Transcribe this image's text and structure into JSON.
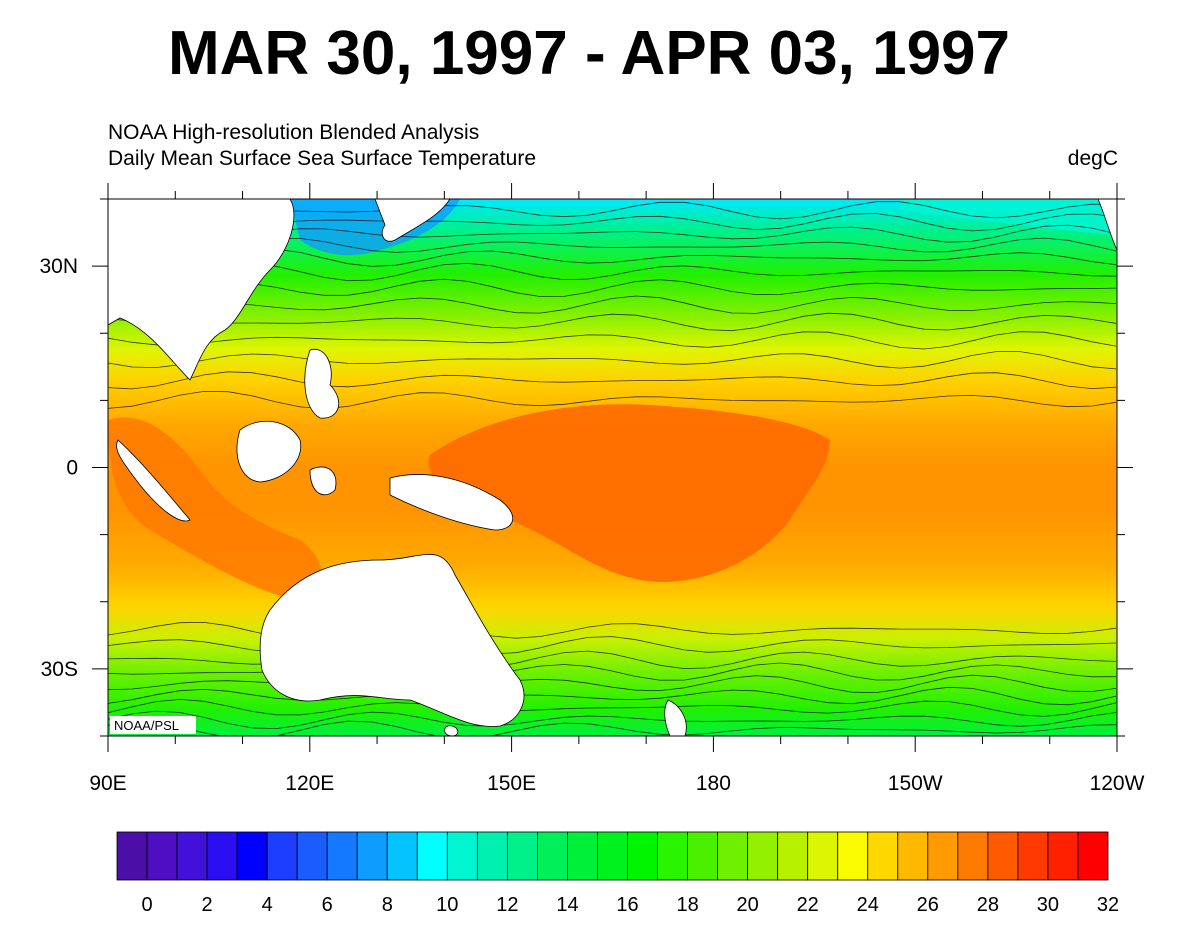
{
  "title": "MAR 30, 1997 - APR 03, 1997",
  "subtitle_line1": "NOAA High-resolution Blended Analysis",
  "subtitle_line2": "Daily Mean  Surface Sea Surface Temperature",
  "units": "degC",
  "credit": "NOAA/PSL",
  "map": {
    "lon_labels": [
      "90E",
      "120E",
      "150E",
      "180",
      "150W",
      "120W"
    ],
    "lat_labels": [
      "30N",
      "0",
      "30S"
    ],
    "lon_range": [
      90,
      240
    ],
    "lat_range": [
      -40,
      40
    ]
  },
  "colorbar": {
    "colors": [
      "#4b0fa8",
      "#4e0fc2",
      "#4110d9",
      "#2b0ff2",
      "#0000ff",
      "#1d3dff",
      "#1a5cff",
      "#1479ff",
      "#0f9cff",
      "#05c3ff",
      "#00ffff",
      "#00f5d0",
      "#00f0b0",
      "#00f08a",
      "#00f05a",
      "#00f03a",
      "#00f21e",
      "#00f500",
      "#2af500",
      "#4af000",
      "#6ff000",
      "#93f000",
      "#b9f000",
      "#dcf500",
      "#fafa00",
      "#ffd800",
      "#ffb800",
      "#ff9a00",
      "#ff7a00",
      "#ff5a00",
      "#ff3a00",
      "#ff2000",
      "#ff0000"
    ],
    "tick_labels": [
      "0",
      "2",
      "4",
      "6",
      "8",
      "10",
      "12",
      "14",
      "16",
      "18",
      "20",
      "22",
      "24",
      "26",
      "28",
      "30",
      "32"
    ]
  }
}
